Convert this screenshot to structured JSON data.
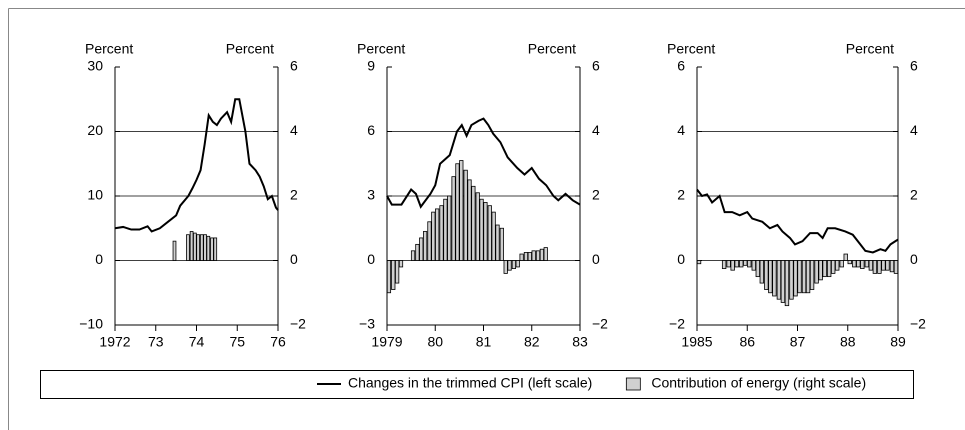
{
  "chart_data": [
    {
      "type": "combo",
      "y_label_left": "Percent",
      "y_label_right": "Percent",
      "xlim": [
        1972,
        1976
      ],
      "xticks": [
        1972,
        {
          "value": 1973,
          "label": "73"
        },
        {
          "value": 1974,
          "label": "74"
        },
        {
          "value": 1975,
          "label": "75"
        },
        {
          "value": 1976,
          "label": "76"
        }
      ],
      "ylim": [
        -10,
        30
      ],
      "yticks": [
        {
          "value": -10,
          "label": "−10"
        },
        0,
        10,
        20,
        30
      ],
      "y2lim": [
        -2,
        6
      ],
      "y2ticks": [
        {
          "value": -2,
          "label": "−2"
        },
        0,
        2,
        4,
        6
      ],
      "series": [
        {
          "type": "line",
          "color": "#000000",
          "x": [
            1972.0,
            1972.2,
            1972.4,
            1972.6,
            1972.8,
            1972.9,
            1973.1,
            1973.3,
            1973.5,
            1973.6,
            1973.8,
            1973.9,
            1974.0,
            1974.1,
            1974.2,
            1974.3,
            1974.4,
            1974.5,
            1974.6,
            1974.75,
            1974.85,
            1974.95,
            1975.05,
            1975.2,
            1975.3,
            1975.45,
            1975.55,
            1975.65,
            1975.75,
            1975.85,
            1975.95,
            1976.0
          ],
          "values": [
            5,
            5.2,
            4.8,
            4.8,
            5.3,
            4.5,
            5,
            6,
            7,
            8.5,
            10,
            11.2,
            12.5,
            14,
            18,
            22.5,
            21.5,
            21,
            22,
            23,
            21.5,
            25,
            25,
            20,
            15,
            14,
            13,
            11.5,
            9.5,
            10,
            8.2,
            7.8
          ]
        },
        {
          "type": "bar",
          "axis": "y2",
          "color": "#d0d0d0",
          "x": [
            1973.46,
            1973.79,
            1973.88,
            1973.96,
            1974.04,
            1974.13,
            1974.21,
            1974.29,
            1974.38,
            1974.46
          ],
          "values": [
            0.6,
            0.8,
            0.9,
            0.85,
            0.8,
            0.8,
            0.8,
            0.75,
            0.7,
            0.7
          ]
        }
      ]
    },
    {
      "type": "combo",
      "y_label_left": "Percent",
      "y_label_right": "Percent",
      "xlim": [
        1979,
        1983
      ],
      "xticks": [
        1979,
        {
          "value": 1980,
          "label": "80"
        },
        {
          "value": 1981,
          "label": "81"
        },
        {
          "value": 1982,
          "label": "82"
        },
        {
          "value": 1983,
          "label": "83"
        }
      ],
      "ylim": [
        -3,
        9
      ],
      "yticks": [
        {
          "value": -3,
          "label": "−3"
        },
        0,
        3,
        6,
        9
      ],
      "y2lim": [
        -2,
        6
      ],
      "y2ticks": [
        {
          "value": -2,
          "label": "−2"
        },
        0,
        2,
        4,
        6
      ],
      "series": [
        {
          "type": "line",
          "color": "#000000",
          "x": [
            1979.0,
            1979.1,
            1979.3,
            1979.5,
            1979.6,
            1979.7,
            1979.9,
            1980.0,
            1980.1,
            1980.3,
            1980.45,
            1980.55,
            1980.65,
            1980.75,
            1980.9,
            1981.0,
            1981.1,
            1981.2,
            1981.35,
            1981.5,
            1981.7,
            1981.85,
            1982.0,
            1982.15,
            1982.3,
            1982.45,
            1982.55,
            1982.7,
            1982.85,
            1983.0
          ],
          "values": [
            3,
            2.6,
            2.6,
            3.3,
            3.1,
            2.5,
            3.1,
            3.5,
            4.5,
            4.9,
            6.0,
            6.3,
            5.8,
            6.3,
            6.5,
            6.6,
            6.3,
            5.9,
            5.5,
            4.8,
            4.3,
            4.0,
            4.3,
            3.8,
            3.5,
            3.0,
            2.8,
            3.1,
            2.8,
            2.6
          ]
        },
        {
          "type": "bar",
          "axis": "y2",
          "color": "#d0d0d0",
          "x": [
            1979.04,
            1979.13,
            1979.21,
            1979.29,
            1979.54,
            1979.63,
            1979.71,
            1979.79,
            1979.88,
            1979.96,
            1980.04,
            1980.13,
            1980.21,
            1980.29,
            1980.38,
            1980.46,
            1980.54,
            1980.63,
            1980.71,
            1980.79,
            1980.88,
            1980.96,
            1981.04,
            1981.13,
            1981.21,
            1981.29,
            1981.38,
            1981.46,
            1981.54,
            1981.63,
            1981.71,
            1981.79,
            1981.88,
            1981.96,
            1982.04,
            1982.13,
            1982.21,
            1982.29
          ],
          "values": [
            -1.0,
            -0.9,
            -0.7,
            -0.2,
            0.3,
            0.5,
            0.7,
            0.9,
            1.2,
            1.5,
            1.6,
            1.7,
            1.9,
            2.0,
            2.6,
            3.0,
            3.1,
            2.8,
            2.5,
            2.3,
            2.1,
            1.9,
            1.8,
            1.7,
            1.5,
            1.1,
            1.0,
            -0.4,
            -0.3,
            -0.25,
            -0.2,
            0.2,
            0.25,
            0.25,
            0.3,
            0.3,
            0.35,
            0.4
          ]
        }
      ]
    },
    {
      "type": "combo",
      "y_label_left": "Percent",
      "y_label_right": "Percent",
      "xlim": [
        1985,
        1989
      ],
      "xticks": [
        1985,
        {
          "value": 1986,
          "label": "86"
        },
        {
          "value": 1987,
          "label": "87"
        },
        {
          "value": 1988,
          "label": "88"
        },
        {
          "value": 1989,
          "label": "89"
        }
      ],
      "ylim": [
        -2,
        6
      ],
      "yticks": [
        {
          "value": -2,
          "label": "−2"
        },
        0,
        2,
        4,
        6
      ],
      "y2lim": [
        -2,
        6
      ],
      "y2ticks": [
        {
          "value": -2,
          "label": "−2"
        },
        0,
        2,
        4,
        6
      ],
      "series": [
        {
          "type": "line",
          "color": "#000000",
          "x": [
            1985.0,
            1985.1,
            1985.2,
            1985.3,
            1985.45,
            1985.55,
            1985.7,
            1985.85,
            1986.0,
            1986.1,
            1986.3,
            1986.45,
            1986.6,
            1986.7,
            1986.85,
            1986.95,
            1987.1,
            1987.25,
            1987.4,
            1987.5,
            1987.6,
            1987.75,
            1987.95,
            1988.1,
            1988.25,
            1988.35,
            1988.5,
            1988.65,
            1988.75,
            1988.85,
            1988.95,
            1989.0
          ],
          "values": [
            2.2,
            2.0,
            2.05,
            1.8,
            2.0,
            1.5,
            1.5,
            1.4,
            1.5,
            1.3,
            1.2,
            1.0,
            1.1,
            0.9,
            0.7,
            0.5,
            0.6,
            0.85,
            0.85,
            0.7,
            1.0,
            1.0,
            0.9,
            0.8,
            0.5,
            0.3,
            0.25,
            0.35,
            0.3,
            0.5,
            0.6,
            0.65
          ]
        },
        {
          "type": "bar",
          "axis": "y2",
          "color": "#d0d0d0",
          "x": [
            1985.04,
            1985.54,
            1985.63,
            1985.71,
            1985.79,
            1985.88,
            1985.96,
            1986.04,
            1986.13,
            1986.21,
            1986.29,
            1986.38,
            1986.46,
            1986.54,
            1986.63,
            1986.71,
            1986.79,
            1986.88,
            1986.96,
            1987.04,
            1987.13,
            1987.21,
            1987.29,
            1987.38,
            1987.46,
            1987.54,
            1987.63,
            1987.71,
            1987.79,
            1987.88,
            1987.96,
            1988.04,
            1988.13,
            1988.21,
            1988.29,
            1988.38,
            1988.46,
            1988.54,
            1988.63,
            1988.71,
            1988.79,
            1988.88,
            1988.96
          ],
          "values": [
            -0.1,
            -0.25,
            -0.2,
            -0.3,
            -0.2,
            -0.2,
            -0.15,
            -0.2,
            -0.3,
            -0.5,
            -0.7,
            -0.9,
            -1.0,
            -1.1,
            -1.2,
            -1.3,
            -1.4,
            -1.2,
            -1.1,
            -1.0,
            -1.0,
            -1.0,
            -0.9,
            -0.7,
            -0.6,
            -0.5,
            -0.5,
            -0.4,
            -0.3,
            -0.2,
            0.2,
            -0.1,
            -0.2,
            -0.2,
            -0.25,
            -0.2,
            -0.3,
            -0.4,
            -0.4,
            -0.3,
            -0.3,
            -0.35,
            -0.4
          ]
        }
      ]
    }
  ],
  "legend": {
    "entries": [
      {
        "label": "Changes in the trimmed CPI (left scale)",
        "kind": "line",
        "color": "#000000"
      },
      {
        "label": "Contribution of energy (right scale)",
        "kind": "bar",
        "color": "#d0d0d0"
      }
    ]
  }
}
